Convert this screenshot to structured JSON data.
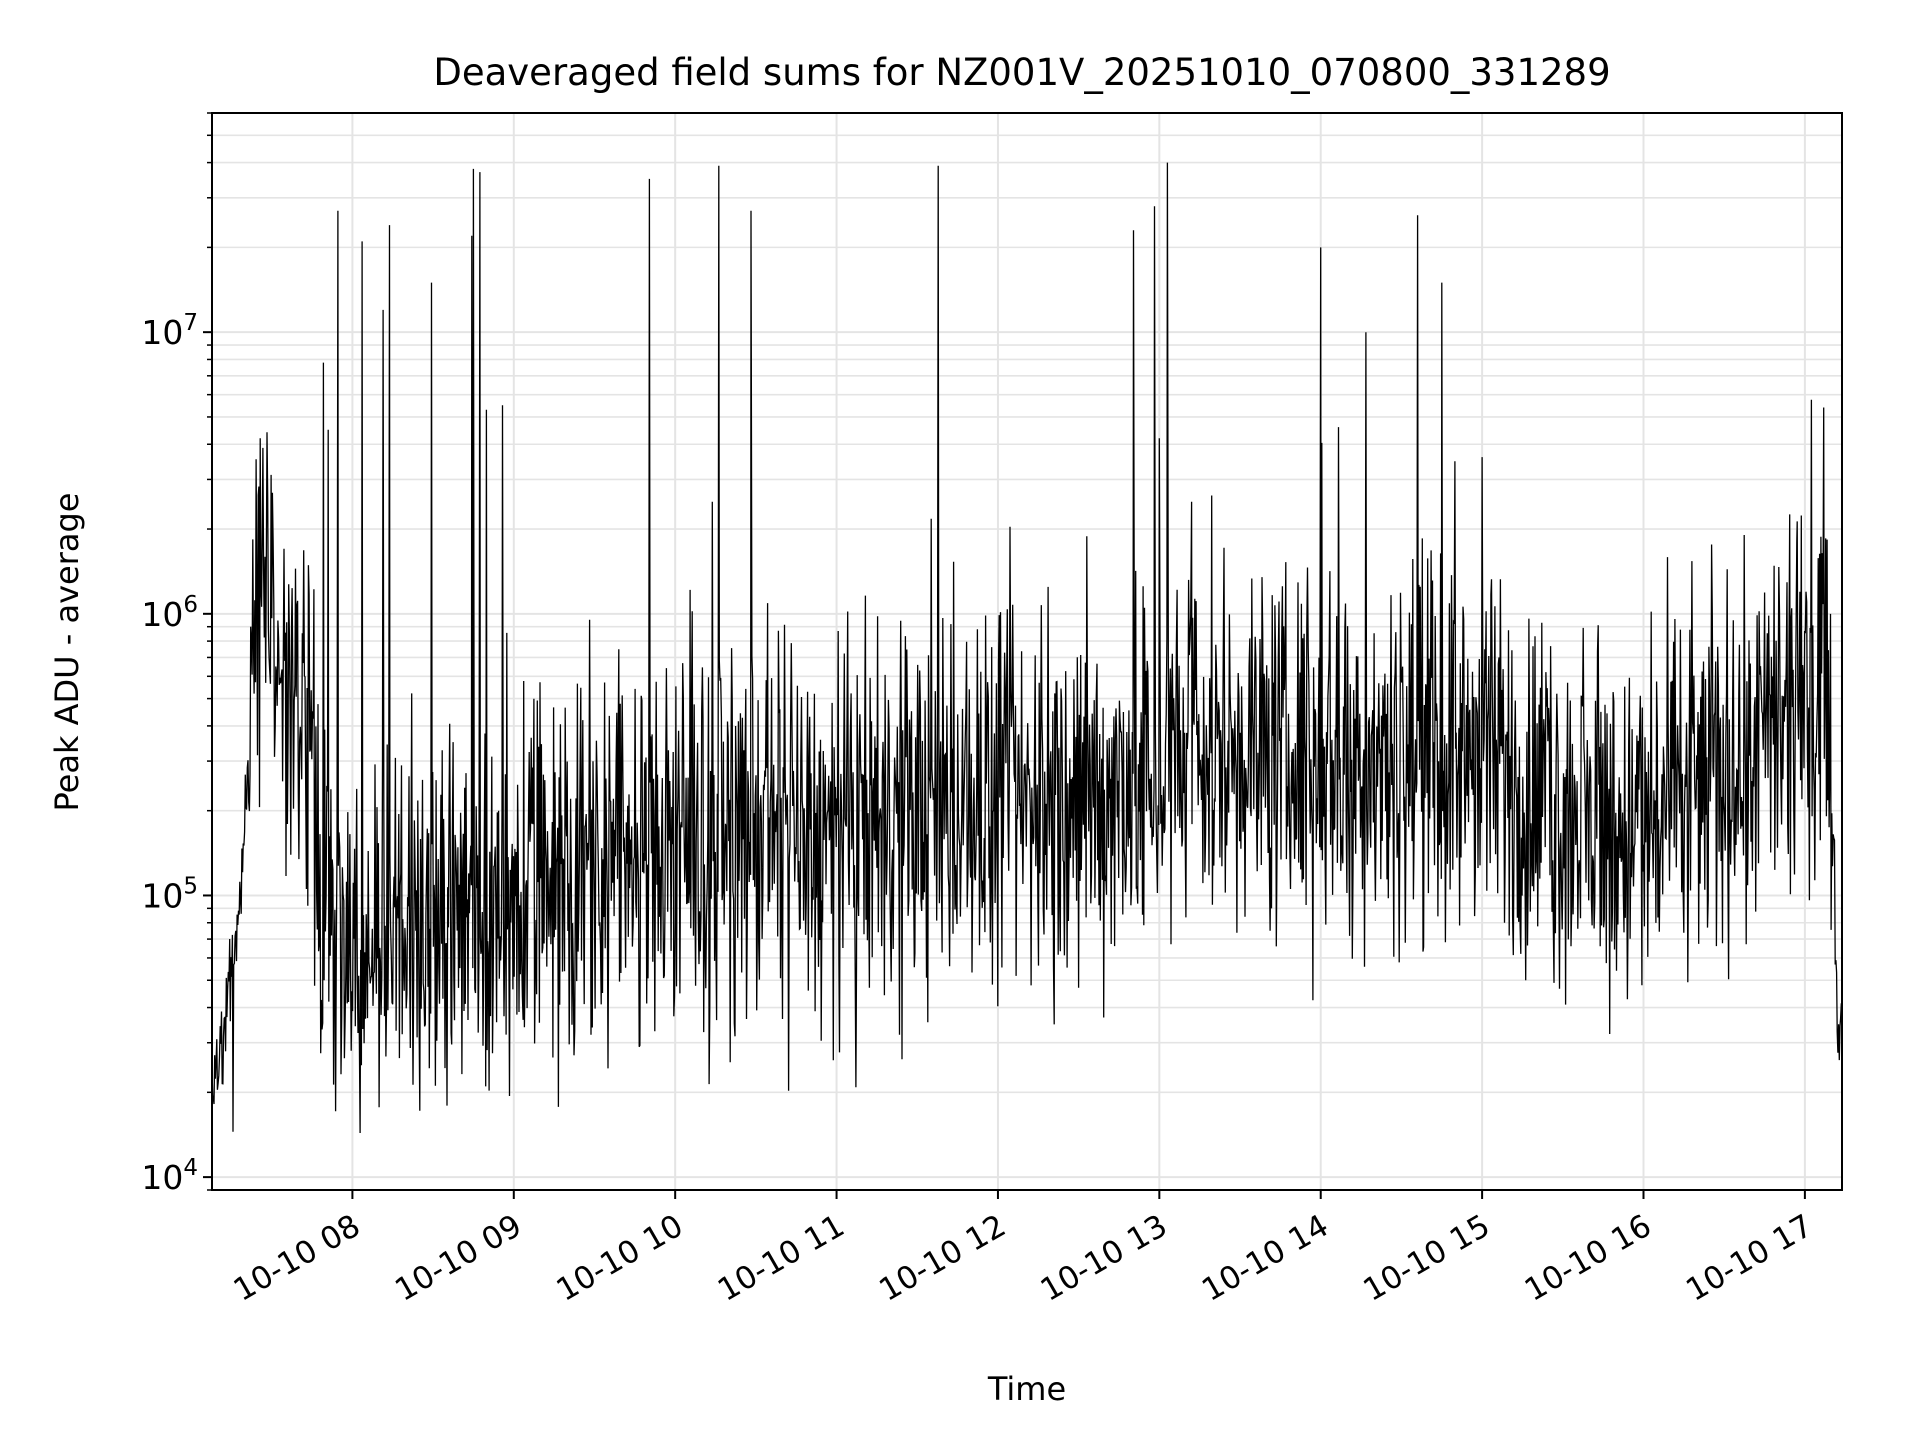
{
  "chart_data": {
    "type": "line",
    "title": "Deaveraged field sums for NZ001V_20251010_070800_331289",
    "xlabel": "Time",
    "ylabel": "Peak ADU - average",
    "yscale": "log",
    "ylim": [
      9000,
      60000000
    ],
    "xlim_hours": [
      7.13,
      17.23
    ],
    "grid": true,
    "legend": "none",
    "x_ticks": [
      {
        "value": 8,
        "label": "10-10 08"
      },
      {
        "value": 9,
        "label": "10-10 09"
      },
      {
        "value": 10,
        "label": "10-10 10"
      },
      {
        "value": 11,
        "label": "10-10 11"
      },
      {
        "value": 12,
        "label": "10-10 12"
      },
      {
        "value": 13,
        "label": "10-10 13"
      },
      {
        "value": 14,
        "label": "10-10 14"
      },
      {
        "value": 15,
        "label": "10-10 15"
      },
      {
        "value": 16,
        "label": "10-10 16"
      },
      {
        "value": 17,
        "label": "10-10 17"
      }
    ],
    "y_ticks": [
      {
        "value": 10000,
        "base": "10",
        "exp": "4"
      },
      {
        "value": 100000,
        "base": "10",
        "exp": "5"
      },
      {
        "value": 1000000,
        "base": "10",
        "exp": "6"
      },
      {
        "value": 10000000,
        "base": "10",
        "exp": "7"
      }
    ],
    "series": [
      {
        "name": "deaveraged field sum",
        "color": "#000000",
        "baseline": [
          [
            7.13,
            20000
          ],
          [
            7.2,
            32000
          ],
          [
            7.25,
            55000
          ],
          [
            7.3,
            90000
          ],
          [
            7.35,
            300000
          ],
          [
            7.4,
            1000000
          ],
          [
            7.45,
            1300000
          ],
          [
            7.5,
            1200000
          ],
          [
            7.55,
            600000
          ],
          [
            7.6,
            450000
          ],
          [
            7.7,
            380000
          ],
          [
            7.75,
            250000
          ],
          [
            7.8,
            120000
          ],
          [
            7.9,
            80000
          ],
          [
            8.0,
            60000
          ],
          [
            8.3,
            70000
          ],
          [
            8.6,
            85000
          ],
          [
            8.9,
            80000
          ],
          [
            9.2,
            120000
          ],
          [
            9.6,
            140000
          ],
          [
            10.0,
            130000
          ],
          [
            10.5,
            170000
          ],
          [
            11.0,
            150000
          ],
          [
            11.5,
            200000
          ],
          [
            12.0,
            210000
          ],
          [
            12.5,
            210000
          ],
          [
            13.0,
            280000
          ],
          [
            13.5,
            330000
          ],
          [
            14.0,
            300000
          ],
          [
            14.5,
            330000
          ],
          [
            15.0,
            300000
          ],
          [
            15.3,
            240000
          ],
          [
            15.6,
            180000
          ],
          [
            16.0,
            170000
          ],
          [
            16.5,
            280000
          ],
          [
            17.0,
            400000
          ],
          [
            17.08,
            700000
          ],
          [
            17.12,
            900000
          ],
          [
            17.15,
            500000
          ],
          [
            17.18,
            120000
          ],
          [
            17.2,
            40000
          ],
          [
            17.23,
            32000
          ]
        ],
        "noise_log10_spread": 0.32,
        "notable_points": [
          {
            "x": 7.26,
            "y": 14500
          },
          {
            "x": 7.82,
            "y": 7800000
          },
          {
            "x": 7.85,
            "y": 4500000
          },
          {
            "x": 7.91,
            "y": 27000000
          },
          {
            "x": 8.06,
            "y": 21000000
          },
          {
            "x": 8.19,
            "y": 12000000
          },
          {
            "x": 8.23,
            "y": 24000000
          },
          {
            "x": 8.49,
            "y": 15000000
          },
          {
            "x": 8.74,
            "y": 22000000
          },
          {
            "x": 8.75,
            "y": 38000000
          },
          {
            "x": 8.79,
            "y": 37000000
          },
          {
            "x": 8.83,
            "y": 5300000
          },
          {
            "x": 8.93,
            "y": 5500000
          },
          {
            "x": 9.84,
            "y": 35000000
          },
          {
            "x": 10.23,
            "y": 2500000
          },
          {
            "x": 10.27,
            "y": 39000000
          },
          {
            "x": 10.47,
            "y": 27000000
          },
          {
            "x": 10.98,
            "y": 26000
          },
          {
            "x": 11.39,
            "y": 32000
          },
          {
            "x": 11.63,
            "y": 39000000
          },
          {
            "x": 12.5,
            "y": 47000
          },
          {
            "x": 12.84,
            "y": 23000000
          },
          {
            "x": 12.97,
            "y": 28000000
          },
          {
            "x": 13.0,
            "y": 4200000
          },
          {
            "x": 13.05,
            "y": 40000000
          },
          {
            "x": 13.2,
            "y": 2500000
          },
          {
            "x": 14.0,
            "y": 20000000
          },
          {
            "x": 14.11,
            "y": 4600000
          },
          {
            "x": 14.28,
            "y": 10000000
          },
          {
            "x": 14.6,
            "y": 26000000
          },
          {
            "x": 14.75,
            "y": 15000000
          },
          {
            "x": 15.0,
            "y": 3600000
          },
          {
            "x": 15.27,
            "y": 50000
          },
          {
            "x": 15.99,
            "y": 48000
          },
          {
            "x": 16.95,
            "y": 1800000
          }
        ]
      }
    ]
  }
}
